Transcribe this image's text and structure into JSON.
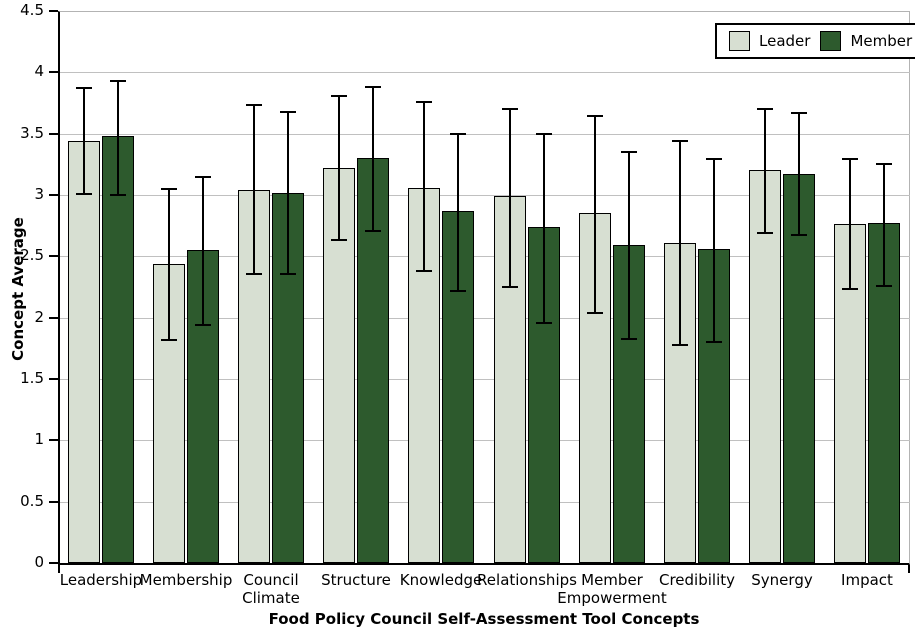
{
  "chart_data": {
    "type": "bar",
    "title": "",
    "xlabel": "Food Policy Council Self-Assessment Tool Concepts",
    "ylabel": "Concept Average",
    "ylim": [
      0,
      4.5
    ],
    "ytick_step": 0.5,
    "ytick_labels": [
      "0",
      "0.5",
      "1",
      "1.5",
      "2",
      "2.5",
      "3",
      "3.5",
      "4",
      "4.5"
    ],
    "grid": true,
    "legend_position": "top-right",
    "error_bars": true,
    "categories": [
      "Leadership",
      "Membership",
      "Council\nClimate",
      "Structure",
      "Knowledge",
      "Relationships",
      "Member\nEmpowerment",
      "Credibility",
      "Synergy",
      "Impact"
    ],
    "series": [
      {
        "name": "Leader",
        "color": "#d7dfd2",
        "values": [
          3.44,
          2.44,
          3.04,
          3.22,
          3.06,
          2.99,
          2.85,
          2.61,
          3.2,
          2.76
        ],
        "err_low": [
          3.01,
          1.82,
          2.36,
          2.63,
          2.38,
          2.25,
          2.04,
          1.78,
          2.69,
          2.23
        ],
        "err_high": [
          3.87,
          3.05,
          3.73,
          3.81,
          3.76,
          3.7,
          3.64,
          3.44,
          3.7,
          3.29
        ]
      },
      {
        "name": "Member",
        "color": "#2d5a2d",
        "values": [
          3.48,
          2.55,
          3.02,
          3.3,
          2.87,
          2.74,
          2.59,
          2.56,
          3.17,
          2.77
        ],
        "err_low": [
          3.0,
          1.94,
          2.36,
          2.71,
          2.22,
          1.96,
          1.83,
          1.8,
          2.67,
          2.26
        ],
        "err_high": [
          3.93,
          3.15,
          3.68,
          3.88,
          3.5,
          3.5,
          3.35,
          3.29,
          3.67,
          3.25
        ]
      }
    ]
  }
}
